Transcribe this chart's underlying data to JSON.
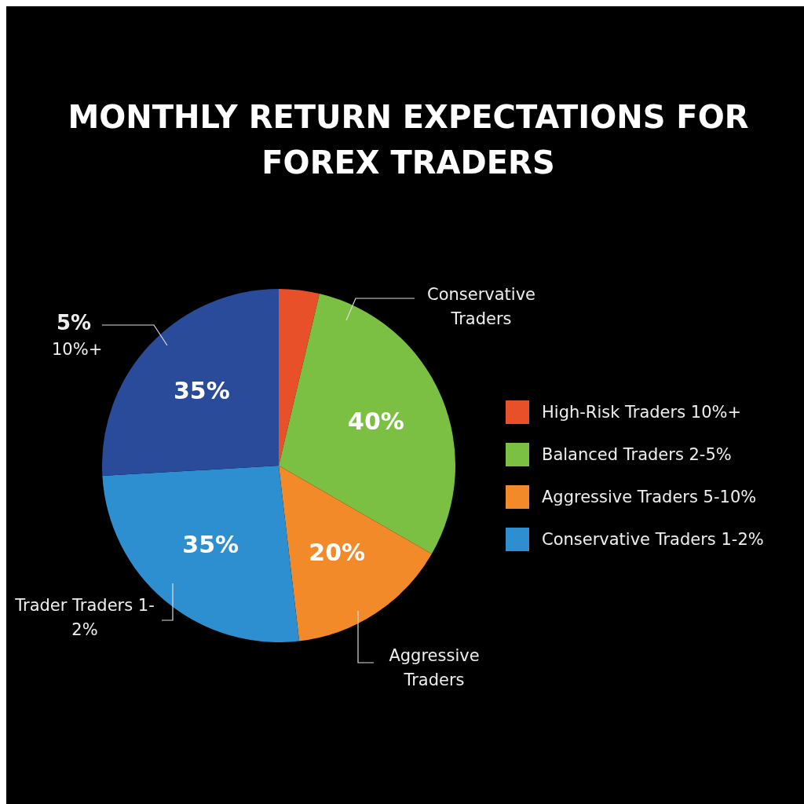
{
  "chart_data": {
    "type": "pie",
    "title": "MONTHLY RETURN EXPECTATIONS FOR FOREX TRADERS",
    "categories": [
      "High-Risk Traders 10%+",
      "Balanced Traders 2-5%",
      "Aggressive Traders 5-10%",
      "Conservative Traders 1-2%",
      null
    ],
    "values": [
      5,
      40,
      20,
      35,
      35
    ],
    "value_labels": [
      null,
      "40%",
      "20%",
      "35%",
      "35%"
    ],
    "colors": [
      "#e8502a",
      "#7cc043",
      "#f28a2a",
      "#2e8fd0",
      "#2a4a9a"
    ],
    "legend": "right",
    "annotations": [
      "Conservative Traders",
      "10%+",
      "Trader Traders 1-2%",
      "Aggressive Traders",
      "5%"
    ]
  }
}
